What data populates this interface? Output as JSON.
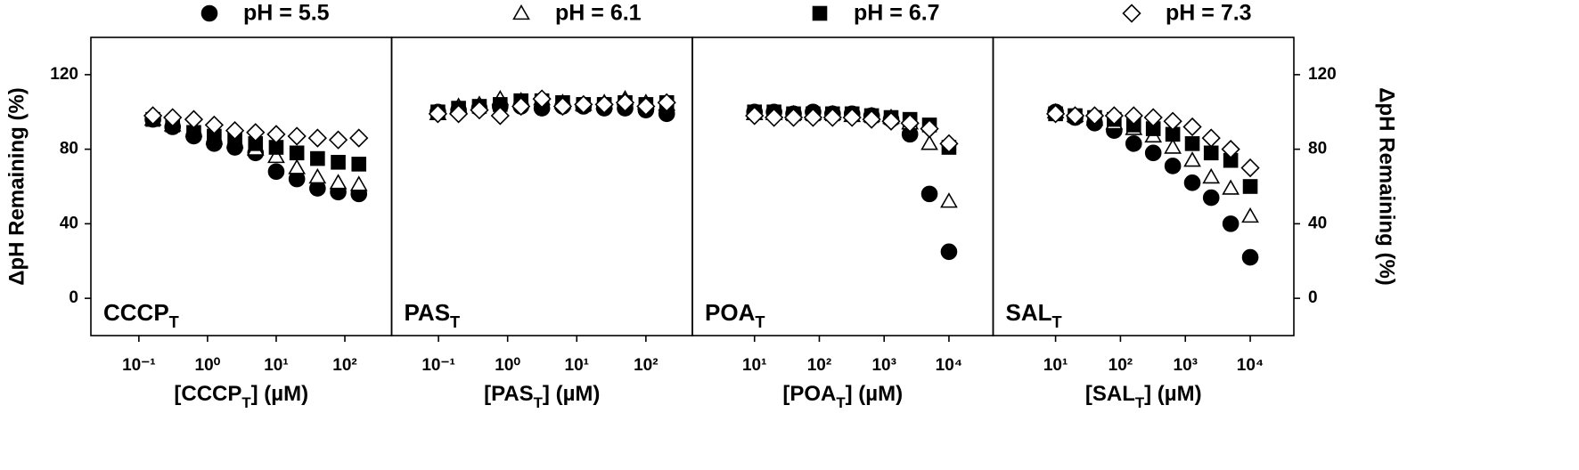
{
  "chart_data": [
    {
      "type": "scatter",
      "x_scale": "log",
      "label": [
        "CCCP",
        "T"
      ],
      "x_label": [
        "[CCCP",
        "T",
        "] (µM)"
      ],
      "y_label": "ΔpH Remaining (%)",
      "xlim": [
        0.02,
        480
      ],
      "ylim": [
        -20,
        140
      ],
      "xticks": [
        {
          "value": 0.1,
          "label": "10⁻¹"
        },
        {
          "value": 1,
          "label": "10⁰"
        },
        {
          "value": 10,
          "label": "10¹"
        },
        {
          "value": 100,
          "label": "10²"
        }
      ],
      "yticks": [
        0,
        40,
        80,
        120
      ],
      "x": [
        0.16,
        0.31,
        0.63,
        1.25,
        2.5,
        5,
        10,
        20,
        40,
        80,
        160
      ],
      "series": [
        {
          "name": "pH = 5.5",
          "color": "#000000",
          "marker": "circle",
          "filled": true,
          "values": [
            96,
            92,
            87,
            83,
            81,
            78,
            68,
            64,
            59,
            57,
            56
          ]
        },
        {
          "name": "pH = 6.1",
          "color": "#000000",
          "marker": "triangle",
          "filled": false,
          "values": [
            96,
            93,
            90,
            86,
            84,
            80,
            76,
            70,
            65,
            62,
            61
          ]
        },
        {
          "name": "pH = 6.7",
          "color": "#000000",
          "marker": "square",
          "filled": true,
          "values": [
            96,
            93,
            89,
            87,
            85,
            83,
            81,
            78,
            75,
            73,
            72
          ]
        },
        {
          "name": "pH = 7.3",
          "color": "#000000",
          "marker": "diamond",
          "filled": false,
          "values": [
            98,
            97,
            96,
            93,
            90,
            89,
            88,
            87,
            86,
            85,
            86
          ]
        }
      ]
    },
    {
      "type": "scatter",
      "x_scale": "log",
      "label": [
        "PAS",
        "T"
      ],
      "x_label": [
        "[PAS",
        "T",
        "] (µM)"
      ],
      "xlim": [
        0.021,
        470
      ],
      "ylim": [
        -20,
        140
      ],
      "xticks": [
        {
          "value": 0.1,
          "label": "10⁻¹"
        },
        {
          "value": 1,
          "label": "10⁰"
        },
        {
          "value": 10,
          "label": "10¹"
        },
        {
          "value": 100,
          "label": "10²"
        }
      ],
      "x": [
        0.098,
        0.195,
        0.39,
        0.78,
        1.56,
        3.13,
        6.25,
        12.5,
        25,
        50,
        100,
        200
      ],
      "series": [
        {
          "color": "#000000",
          "marker": "circle",
          "filled": true,
          "values": [
            100,
            101,
            102,
            103,
            103,
            102,
            103,
            103,
            102,
            102,
            101,
            99
          ]
        },
        {
          "color": "#000000",
          "marker": "triangle",
          "filled": false,
          "values": [
            99,
            103,
            104,
            107,
            106,
            107,
            105,
            104,
            105,
            107,
            105,
            104
          ]
        },
        {
          "color": "#000000",
          "marker": "square",
          "filled": true,
          "values": [
            100,
            102,
            103,
            104,
            106,
            106,
            105,
            104,
            104,
            105,
            104,
            105
          ]
        },
        {
          "color": "#000000",
          "marker": "diamond",
          "filled": false,
          "values": [
            99,
            99,
            101,
            98,
            103,
            107,
            103,
            104,
            104,
            105,
            103,
            105
          ]
        }
      ]
    },
    {
      "type": "scatter",
      "x_scale": "log",
      "label": [
        "POA",
        "T"
      ],
      "x_label": [
        "[POA",
        "T",
        "] (µM)"
      ],
      "xlim": [
        1.1,
        48000
      ],
      "ylim": [
        -20,
        140
      ],
      "xticks": [
        {
          "value": 10,
          "label": "10¹"
        },
        {
          "value": 100,
          "label": "10²"
        },
        {
          "value": 1000,
          "label": "10³"
        },
        {
          "value": 10000,
          "label": "10⁴"
        }
      ],
      "x": [
        10,
        20,
        40,
        80,
        160,
        320,
        640,
        1280,
        2500,
        5000,
        10000
      ],
      "series": [
        {
          "color": "#000000",
          "marker": "circle",
          "filled": true,
          "values": [
            100,
            100,
            99,
            100,
            99,
            99,
            98,
            96,
            88,
            56,
            25
          ]
        },
        {
          "color": "#000000",
          "marker": "triangle",
          "filled": false,
          "values": [
            99,
            99,
            99,
            99,
            99,
            98,
            98,
            97,
            94,
            83,
            52
          ]
        },
        {
          "color": "#000000",
          "marker": "square",
          "filled": true,
          "values": [
            100,
            100,
            99,
            99,
            99,
            99,
            98,
            97,
            96,
            93,
            81
          ]
        },
        {
          "color": "#000000",
          "marker": "diamond",
          "filled": false,
          "values": [
            98,
            97,
            97,
            97,
            97,
            97,
            96,
            95,
            94,
            91,
            83
          ]
        }
      ]
    },
    {
      "type": "scatter",
      "x_scale": "log",
      "label": [
        "SAL",
        "T"
      ],
      "x_label": [
        "[SAL",
        "T",
        "] (µM)"
      ],
      "y2_label": "ΔpH Remaining (%)",
      "xlim": [
        1.09,
        47000
      ],
      "ylim": [
        -20,
        140
      ],
      "y2lim": [
        -20,
        140
      ],
      "y2ticks": [
        0,
        40,
        80,
        120
      ],
      "xticks": [
        {
          "value": 10,
          "label": "10¹"
        },
        {
          "value": 100,
          "label": "10²"
        },
        {
          "value": 1000,
          "label": "10³"
        },
        {
          "value": 10000,
          "label": "10⁴"
        }
      ],
      "x": [
        10,
        20,
        40,
        80,
        160,
        320,
        640,
        1280,
        2500,
        5000,
        10000
      ],
      "series": [
        {
          "color": "#000000",
          "marker": "circle",
          "filled": true,
          "values": [
            100,
            97,
            94,
            90,
            83,
            78,
            71,
            62,
            54,
            40,
            22
          ]
        },
        {
          "color": "#000000",
          "marker": "triangle",
          "filled": false,
          "values": [
            100,
            98,
            96,
            94,
            91,
            87,
            81,
            74,
            65,
            59,
            44
          ]
        },
        {
          "color": "#000000",
          "marker": "square",
          "filled": true,
          "values": [
            99,
            98,
            97,
            96,
            93,
            91,
            88,
            83,
            78,
            74,
            60
          ]
        },
        {
          "color": "#000000",
          "marker": "diamond",
          "filled": false,
          "values": [
            99,
            98,
            98,
            98,
            98,
            97,
            95,
            92,
            86,
            80,
            70
          ]
        }
      ]
    }
  ]
}
